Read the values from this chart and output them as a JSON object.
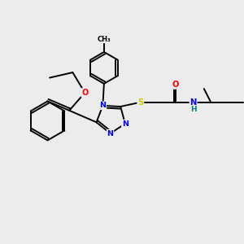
{
  "background_color": "#ececec",
  "atom_colors": {
    "N": "#0000ff",
    "O": "#ff0000",
    "S": "#cccc00",
    "H": "#008080",
    "C": "#000000"
  },
  "bond_color": "#000000",
  "bond_lw": 1.4,
  "figsize": [
    3.0,
    3.0
  ],
  "dpi": 100,
  "xlim": [
    0,
    10
  ],
  "ylim": [
    0,
    10
  ]
}
